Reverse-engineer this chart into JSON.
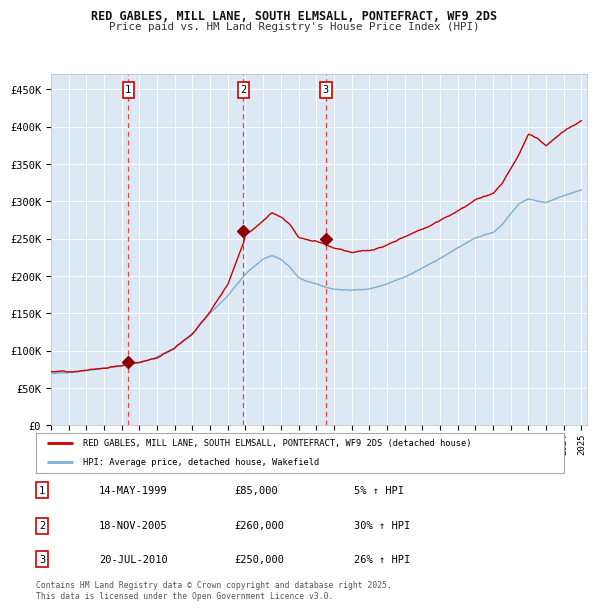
{
  "title_line1": "RED GABLES, MILL LANE, SOUTH ELMSALL, PONTEFRACT, WF9 2DS",
  "title_line2": "Price paid vs. HM Land Registry's House Price Index (HPI)",
  "background_color": "#dce9f5",
  "plot_bg_color": "#dce9f5",
  "fig_bg_color": "#ffffff",
  "red_line_color": "#cc0000",
  "blue_line_color": "#7bafd4",
  "marker_color": "#8b0000",
  "dashed_line_color": "#ee4444",
  "ylim": [
    0,
    470000
  ],
  "yticks": [
    0,
    50000,
    100000,
    150000,
    200000,
    250000,
    300000,
    350000,
    400000,
    450000
  ],
  "ytick_labels": [
    "£0",
    "£50K",
    "£100K",
    "£150K",
    "£200K",
    "£250K",
    "£300K",
    "£350K",
    "£400K",
    "£450K"
  ],
  "sale_dates_num": [
    1999.37,
    2005.88,
    2010.55
  ],
  "sale_prices": [
    85000,
    260000,
    250000
  ],
  "sale_labels": [
    "1",
    "2",
    "3"
  ],
  "legend_red": "RED GABLES, MILL LANE, SOUTH ELMSALL, PONTEFRACT, WF9 2DS (detached house)",
  "legend_blue": "HPI: Average price, detached house, Wakefield",
  "table_rows": [
    [
      "1",
      "14-MAY-1999",
      "£85,000",
      "5% ↑ HPI"
    ],
    [
      "2",
      "18-NOV-2005",
      "£260,000",
      "30% ↑ HPI"
    ],
    [
      "3",
      "20-JUL-2010",
      "£250,000",
      "26% ↑ HPI"
    ]
  ],
  "footer": "Contains HM Land Registry data © Crown copyright and database right 2025.\nThis data is licensed under the Open Government Licence v3.0.",
  "grid_color": "#ffffff",
  "box_edge_color": "#cc0000",
  "xlim_start": 1995,
  "xlim_end": 2025.3
}
